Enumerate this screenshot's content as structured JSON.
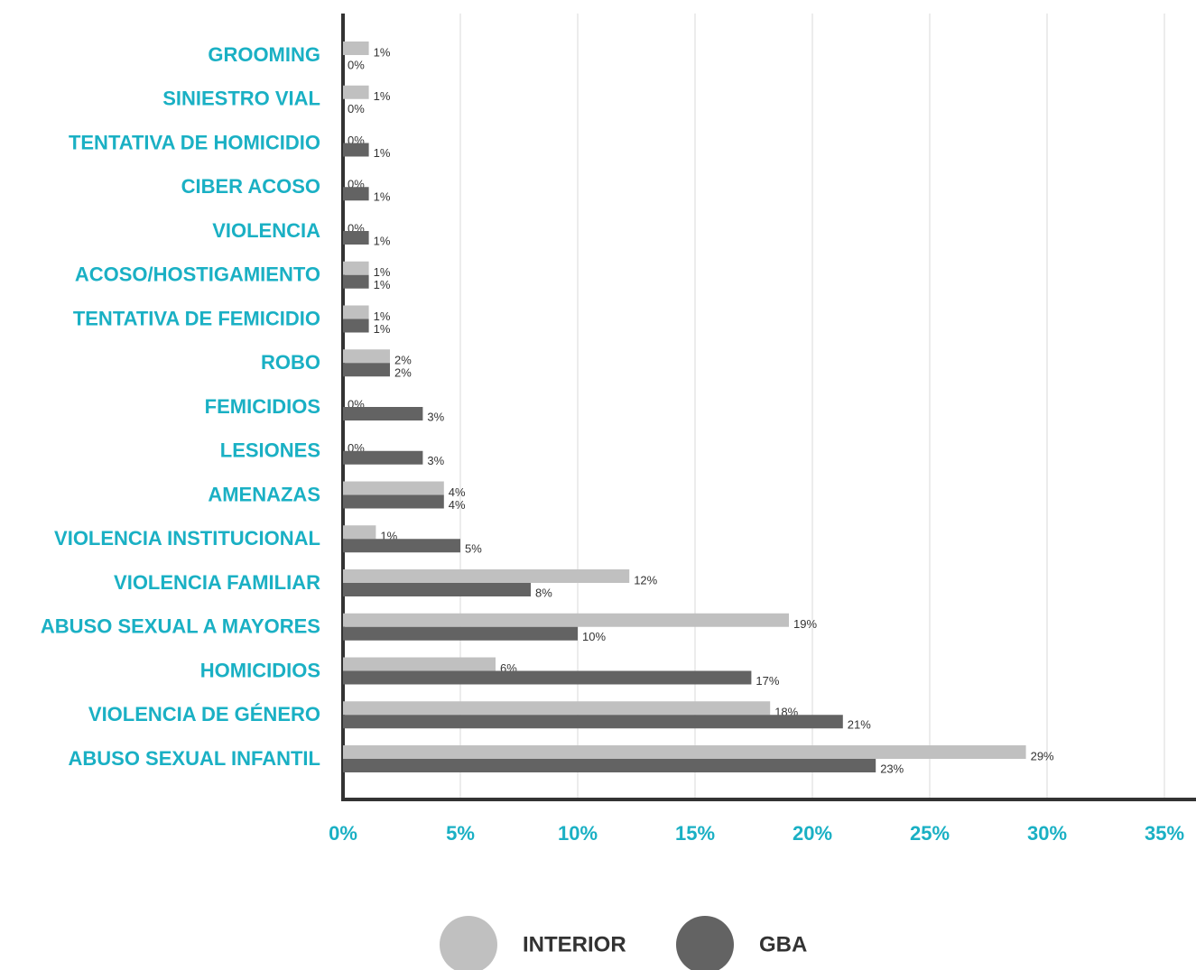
{
  "chart_data": {
    "type": "hbar",
    "categories": [
      "GROOMING",
      "SINIESTRO VIAL",
      "TENTATIVA DE HOMICIDIO",
      "CIBER ACOSO",
      "VIOLENCIA",
      "ACOSO/HOSTIGAMIENTO",
      "TENTATIVA DE FEMICIDIO",
      "ROBO",
      "FEMICIDIOS",
      "LESIONES",
      "AMENAZAS",
      "VIOLENCIA INSTITUCIONAL",
      "VIOLENCIA FAMILIAR",
      "ABUSO SEXUAL A MAYORES",
      "HOMICIDIOS",
      "VIOLENCIA DE GÉNERO",
      "ABUSO SEXUAL INFANTIL"
    ],
    "series": [
      {
        "name": "INTERIOR",
        "color": "#c0c0c0",
        "values": [
          1.1,
          1.1,
          0,
          0,
          0,
          1.1,
          1.1,
          2.0,
          0,
          0,
          4.3,
          1.4,
          12.2,
          19.0,
          6.5,
          18.2,
          29.1
        ],
        "value_labels": [
          "1%",
          "1%",
          "0%",
          "0%",
          "0%",
          "1%",
          "1%",
          "2%",
          "0%",
          "0%",
          "4%",
          "1%",
          "12%",
          "19%",
          "6%",
          "18%",
          "29%"
        ]
      },
      {
        "name": "GBA",
        "color": "#636363",
        "values": [
          0,
          0,
          1.1,
          1.1,
          1.1,
          1.1,
          1.1,
          2.0,
          3.4,
          3.4,
          4.3,
          5.0,
          8.0,
          10.0,
          17.4,
          21.3,
          22.7
        ],
        "value_labels": [
          "0%",
          "0%",
          "1%",
          "1%",
          "1%",
          "1%",
          "1%",
          "2%",
          "3%",
          "3%",
          "4%",
          "5%",
          "8%",
          "10%",
          "17%",
          "21%",
          "23%"
        ]
      }
    ],
    "xlim": [
      0,
      35
    ],
    "xticks": [
      {
        "value": 0,
        "label": "0%"
      },
      {
        "value": 5,
        "label": "5%"
      },
      {
        "value": 10,
        "label": "10%"
      },
      {
        "value": 15,
        "label": "15%"
      },
      {
        "value": 20,
        "label": "20%"
      },
      {
        "value": 25,
        "label": "25%"
      },
      {
        "value": 30,
        "label": "30%"
      },
      {
        "value": 35,
        "label": "35%"
      }
    ],
    "grid": true,
    "legend": "bottom"
  }
}
